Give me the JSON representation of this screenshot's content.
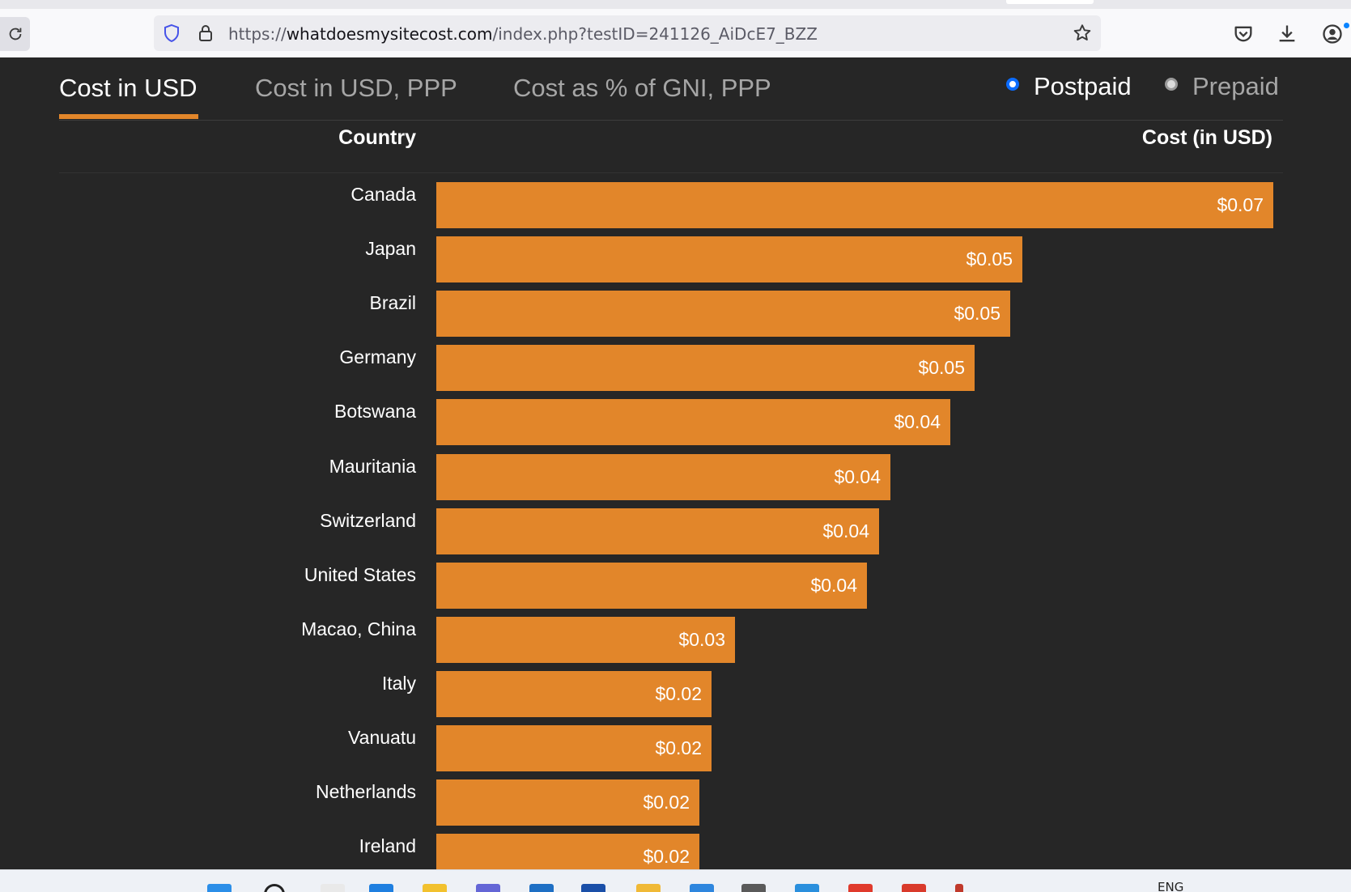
{
  "browser": {
    "url_scheme": "https://",
    "url_host": "whatdoesmysitecost.com",
    "url_path": "/index.php?testID=241126_AiDcE7_BZZ"
  },
  "tabs": [
    {
      "label": "Cost in USD",
      "active": true
    },
    {
      "label": "Cost in USD, PPP",
      "active": false
    },
    {
      "label": "Cost as % of GNI, PPP",
      "active": false
    }
  ],
  "plans": [
    {
      "label": "Postpaid",
      "selected": true
    },
    {
      "label": "Prepaid",
      "selected": false
    }
  ],
  "table": {
    "country_header": "Country",
    "cost_header": "Cost (in USD)"
  },
  "chart_data": {
    "type": "bar",
    "orientation": "horizontal",
    "bar_color": "#e2862a",
    "categories": [
      "Canada",
      "Japan",
      "Brazil",
      "Germany",
      "Botswana",
      "Mauritania",
      "Switzerland",
      "United States",
      "Macao, China",
      "Italy",
      "Vanuatu",
      "Netherlands",
      "Ireland"
    ],
    "values": [
      0.07,
      0.049,
      0.048,
      0.045,
      0.043,
      0.038,
      0.037,
      0.036,
      0.025,
      0.023,
      0.023,
      0.022,
      0.022
    ],
    "value_labels": [
      "$0.07",
      "$0.05",
      "$0.05",
      "$0.05",
      "$0.04",
      "$0.04",
      "$0.04",
      "$0.04",
      "$0.03",
      "$0.02",
      "$0.02",
      "$0.02",
      "$0.02"
    ],
    "xlim": [
      0,
      0.07
    ]
  },
  "taskbar": {
    "language": "ENG"
  },
  "colors": {
    "accent": "#e2862a",
    "background": "#262626",
    "radio_selected": "#0b6cff"
  }
}
